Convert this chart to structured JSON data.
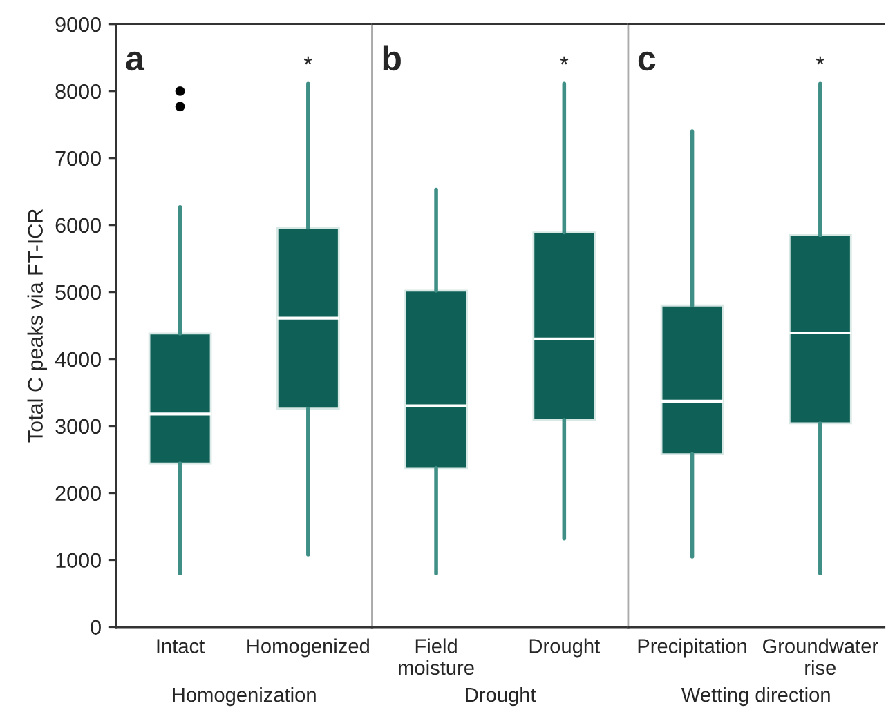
{
  "chart_data": [
    {
      "type": "box",
      "categories": [
        "Intact",
        "Homogenized"
      ],
      "xlabel": "Homogenization",
      "ylabel": "Total C peaks via FT-ICR",
      "color": "#0f6157",
      "boxes": [
        {
          "low": 800,
          "q1": 2440,
          "median": 3180,
          "q3": 4380,
          "high": 6270,
          "outliers": [
            8000,
            7770
          ]
        },
        {
          "low": 1080,
          "q1": 3260,
          "median": 4610,
          "q3": 5960,
          "high": 8110
        }
      ],
      "annotations": [
        "a",
        "*"
      ],
      "ylim": [
        0,
        9000
      ],
      "yticks": [
        0,
        1000,
        2000,
        3000,
        4000,
        5000,
        6000,
        7000,
        8000,
        9000
      ],
      "grid": false
    },
    {
      "type": "box",
      "categories": [
        "Field\nmoisture",
        "Drought"
      ],
      "xlabel": "Drought",
      "color": "#0f6157",
      "boxes": [
        {
          "low": 800,
          "q1": 2370,
          "median": 3300,
          "q3": 5020,
          "high": 6530
        },
        {
          "low": 1320,
          "q1": 3090,
          "median": 4300,
          "q3": 5890,
          "high": 8110
        }
      ],
      "annotations": [
        "b",
        "*"
      ],
      "ylim": [
        0,
        9000
      ],
      "tick_labels": "x",
      "grid": false
    },
    {
      "type": "box",
      "categories": [
        "Precipitation",
        "Groundwater\nrise"
      ],
      "xlabel": "Wetting direction",
      "color": "#0f6157",
      "boxes": [
        {
          "low": 1050,
          "q1": 2580,
          "median": 3370,
          "q3": 4800,
          "high": 7400
        },
        {
          "low": 800,
          "q1": 3040,
          "median": 4390,
          "q3": 5850,
          "high": 8110
        }
      ],
      "annotations": [
        "c",
        "*"
      ],
      "ylim": [
        0,
        9000
      ],
      "tick_labels": "x",
      "grid": false
    }
  ]
}
